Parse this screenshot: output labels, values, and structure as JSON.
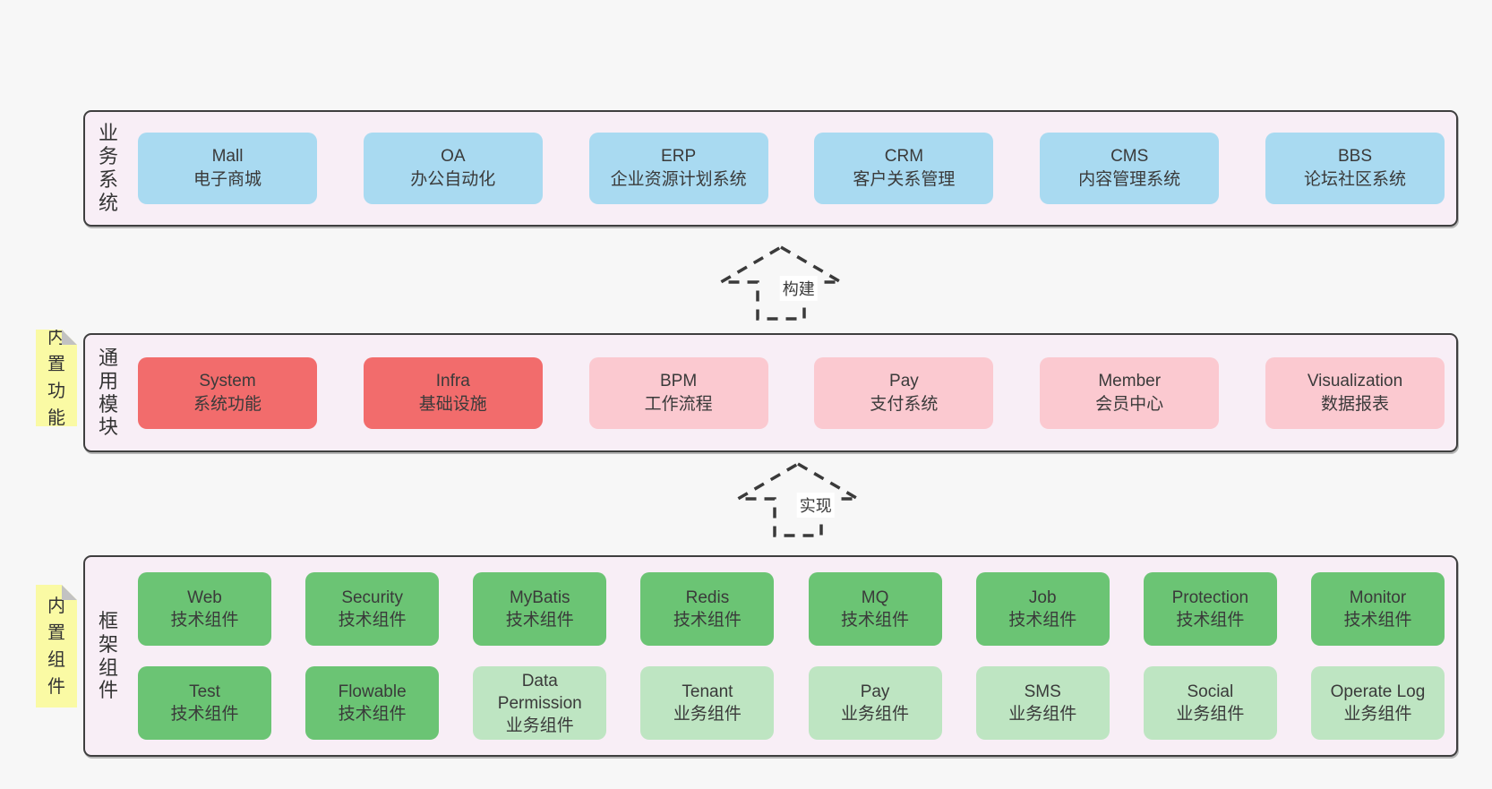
{
  "diagram": {
    "layers": [
      {
        "id": "business-systems",
        "label": "业务系统",
        "note": null,
        "rows": [
          [
            {
              "title": "Mall",
              "subtitle": "电子商城",
              "variant": "blue"
            },
            {
              "title": "OA",
              "subtitle": "办公自动化",
              "variant": "blue"
            },
            {
              "title": "ERP",
              "subtitle": "企业资源计划系统",
              "variant": "blue"
            },
            {
              "title": "CRM",
              "subtitle": "客户关系管理",
              "variant": "blue"
            },
            {
              "title": "CMS",
              "subtitle": "内容管理系统",
              "variant": "blue"
            },
            {
              "title": "BBS",
              "subtitle": "论坛社区系统",
              "variant": "blue"
            }
          ]
        ]
      },
      {
        "id": "common-modules",
        "label": "通用模块",
        "note": "内置功能",
        "rows": [
          [
            {
              "title": "System",
              "subtitle": "系统功能",
              "variant": "red"
            },
            {
              "title": "Infra",
              "subtitle": "基础设施",
              "variant": "red"
            },
            {
              "title": "BPM",
              "subtitle": "工作流程",
              "variant": "pink"
            },
            {
              "title": "Pay",
              "subtitle": "支付系统",
              "variant": "pink"
            },
            {
              "title": "Member",
              "subtitle": "会员中心",
              "variant": "pink"
            },
            {
              "title": "Visualization",
              "subtitle": "数据报表",
              "variant": "pink"
            }
          ]
        ]
      },
      {
        "id": "framework-components",
        "label": "框架组件",
        "note": "内置组件",
        "rows": [
          [
            {
              "title": "Web",
              "subtitle": "技术组件",
              "variant": "green-dark"
            },
            {
              "title": "Security",
              "subtitle": "技术组件",
              "variant": "green-dark"
            },
            {
              "title": "MyBatis",
              "subtitle": "技术组件",
              "variant": "green-dark"
            },
            {
              "title": "Redis",
              "subtitle": "技术组件",
              "variant": "green-dark"
            },
            {
              "title": "MQ",
              "subtitle": "技术组件",
              "variant": "green-dark"
            },
            {
              "title": "Job",
              "subtitle": "技术组件",
              "variant": "green-dark"
            },
            {
              "title": "Protection",
              "subtitle": "技术组件",
              "variant": "green-dark"
            },
            {
              "title": "Monitor",
              "subtitle": "技术组件",
              "variant": "green-dark"
            }
          ],
          [
            {
              "title": "Test",
              "subtitle": "技术组件",
              "variant": "green-dark"
            },
            {
              "title": "Flowable",
              "subtitle": "技术组件",
              "variant": "green-dark"
            },
            {
              "title": "Data Permission",
              "subtitle": "业务组件",
              "variant": "green-light"
            },
            {
              "title": "Tenant",
              "subtitle": "业务组件",
              "variant": "green-light"
            },
            {
              "title": "Pay",
              "subtitle": "业务组件",
              "variant": "green-light"
            },
            {
              "title": "SMS",
              "subtitle": "业务组件",
              "variant": "green-light"
            },
            {
              "title": "Social",
              "subtitle": "业务组件",
              "variant": "green-light"
            },
            {
              "title": "Operate Log",
              "subtitle": "业务组件",
              "variant": "green-light"
            }
          ]
        ]
      }
    ],
    "arrows": [
      {
        "label": "构建"
      },
      {
        "label": "实现"
      }
    ],
    "colors": {
      "page_background": "#f7f7f7",
      "panel_background": "#f8eef6",
      "panel_border": "#3f3f3f",
      "blue_box": "#a9daf1",
      "red_box": "#f26c6c",
      "pink_box": "#fbc9d0",
      "green_dark_box": "#6bc474",
      "green_light_box": "#bee5c2",
      "note_background": "#fafaa4",
      "note_fold": "#c2c2c2",
      "text": "#3a3a3a"
    }
  }
}
